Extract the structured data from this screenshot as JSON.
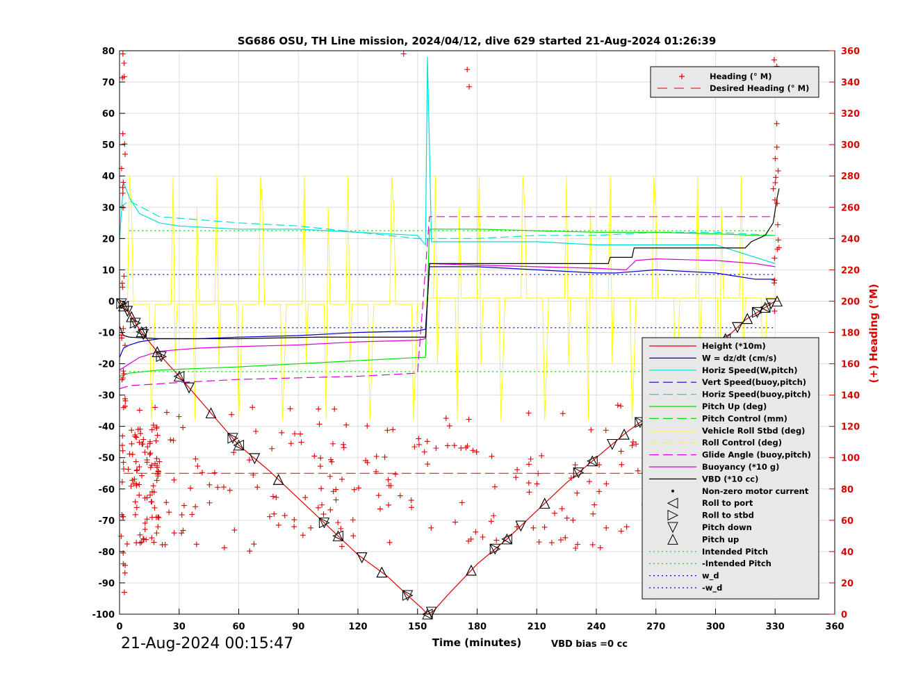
{
  "chart_data": {
    "type": "line",
    "title": "SG686 OSU, TH Line mission, 2024/04/12, dive 629 started 21-Aug-2024 01:26:39",
    "xlabel": "Time (minutes)",
    "ylabel_right": "(+) Heading (°M)",
    "footer_left": "21-Aug-2024 00:15:47",
    "footer_note": "VBD bias =0 cc",
    "xlim": [
      0,
      360
    ],
    "ylim": [
      -100,
      80
    ],
    "ylim_right": [
      0,
      360
    ],
    "x_ticks": [
      "0",
      "30",
      "60",
      "90",
      "120",
      "150",
      "180",
      "210",
      "240",
      "270",
      "300",
      "330",
      "360"
    ],
    "y_ticks": [
      "80",
      "70",
      "60",
      "50",
      "40",
      "30",
      "20",
      "10",
      "0",
      "-10",
      "-20",
      "-30",
      "-40",
      "-50",
      "-60",
      "-70",
      "-80",
      "-90",
      "-100"
    ],
    "y_ticks_right": [
      "360",
      "340",
      "320",
      "300",
      "280",
      "260",
      "240",
      "220",
      "200",
      "180",
      "160",
      "140",
      "120",
      "100",
      "80",
      "60",
      "40",
      "20",
      "0"
    ],
    "grid": true,
    "legend_top": [
      {
        "label": "Heading (° M)",
        "color": "#dd0000",
        "style": "plus"
      },
      {
        "label": "Desired Heading (° M)",
        "color": "#dd0000",
        "style": "dash"
      }
    ],
    "legend_main": [
      {
        "label": "Height (*10m)",
        "color": "#dd0000",
        "style": "solid"
      },
      {
        "label": "W = dz/dt (cm/s)",
        "color": "#0000cc",
        "style": "solid"
      },
      {
        "label": "Horiz Speed(W,pitch)",
        "color": "#00dddd",
        "style": "solid"
      },
      {
        "label": "Vert Speed(buoy,pitch)",
        "color": "#0000cc",
        "style": "dash"
      },
      {
        "label": "Horiz Speed(buoy,pitch)",
        "color": "#00dddd",
        "style": "dash"
      },
      {
        "label": "Pitch Up (deg)",
        "color": "#00dd00",
        "style": "solid"
      },
      {
        "label": "Pitch Control (mm)",
        "color": "#00dd00",
        "style": "dash"
      },
      {
        "label": "Vehicle Roll Stbd (deg)",
        "color": "#ffff00",
        "style": "solid"
      },
      {
        "label": "Roll Control (deg)",
        "color": "#ffff00",
        "style": "dash"
      },
      {
        "label": "Glide Angle (buoy,pitch)",
        "color": "#dd00dd",
        "style": "dash"
      },
      {
        "label": "Buoyancy (*10 g)",
        "color": "#dd00dd",
        "style": "solid"
      },
      {
        "label": "VBD (*10 cc)",
        "color": "#000000",
        "style": "solid"
      },
      {
        "label": "Non-zero motor current",
        "color": "#000000",
        "style": "dot"
      },
      {
        "label": "Roll to port",
        "color": "#000000",
        "style": "tri-left"
      },
      {
        "label": "Roll to stbd",
        "color": "#000000",
        "style": "tri-right"
      },
      {
        "label": "Pitch down",
        "color": "#000000",
        "style": "tri-down"
      },
      {
        "label": "Pitch up",
        "color": "#000000",
        "style": "tri-up"
      },
      {
        "label": "Intended Pitch",
        "color": "#00dd00",
        "style": "dotted"
      },
      {
        "label": "-Intended Pitch",
        "color": "#00dd00",
        "style": "dotted"
      },
      {
        "label": "w_d",
        "color": "#0000cc",
        "style": "dotted"
      },
      {
        "label": "-w_d",
        "color": "#0000cc",
        "style": "dotted"
      }
    ],
    "series": [
      {
        "name": "Height (*10m)",
        "color": "#dd0000",
        "x": [
          0,
          5,
          10,
          20,
          30,
          45,
          60,
          75,
          90,
          105,
          120,
          135,
          145,
          152,
          155,
          158,
          165,
          180,
          195,
          210,
          225,
          240,
          255,
          270,
          285,
          300,
          315,
          325,
          330,
          332
        ],
        "y": [
          0,
          -4,
          -9,
          -17,
          -24,
          -35,
          -46,
          -54,
          -63,
          -72,
          -81,
          -88,
          -94,
          -98,
          -100,
          -99,
          -94,
          -84,
          -76,
          -67,
          -58,
          -50,
          -42,
          -35,
          -25,
          -15,
          -6,
          -2,
          0,
          0
        ]
      },
      {
        "name": "W = dz/dt (cm/s)",
        "color": "#0000cc",
        "x": [
          0,
          2,
          5,
          10,
          20,
          40,
          60,
          90,
          120,
          150,
          154,
          156,
          180,
          210,
          240,
          250,
          270,
          300,
          310,
          320,
          330
        ],
        "y": [
          -18,
          -15,
          -14,
          -13,
          -12,
          -12,
          -11.5,
          -11,
          -10,
          -9.5,
          -9,
          11,
          11,
          10,
          9,
          9,
          10,
          9,
          8,
          7,
          7
        ]
      },
      {
        "name": "Horiz Speed(W,pitch)",
        "color": "#00dddd",
        "x": [
          0,
          2,
          5,
          10,
          20,
          30,
          60,
          90,
          120,
          150,
          154,
          155,
          157,
          180,
          210,
          240,
          270,
          300,
          320,
          330
        ],
        "y": [
          20,
          38,
          33,
          28,
          25,
          24,
          23,
          23,
          22,
          21,
          18,
          78,
          19,
          19,
          19,
          18,
          18,
          18,
          14,
          12
        ]
      },
      {
        "name": "Horiz Speed(buoy,pitch)",
        "color": "#00dddd",
        "x": [
          0,
          5,
          20,
          40,
          60,
          90,
          120,
          150,
          156,
          180,
          210,
          240,
          270,
          300,
          330
        ],
        "y": [
          30,
          32,
          27,
          26,
          25,
          24,
          22,
          20,
          20,
          20,
          21,
          21,
          22,
          22,
          21
        ]
      },
      {
        "name": "Pitch Up (deg)",
        "color": "#00dd00",
        "x": [
          0,
          5,
          20,
          40,
          60,
          90,
          120,
          150,
          154,
          156,
          180,
          210,
          240,
          270,
          300,
          320,
          330
        ],
        "y": [
          -24,
          -23,
          -22,
          -21.5,
          -21,
          -20,
          -19,
          -18,
          -18,
          23,
          23,
          22.5,
          22,
          22,
          21.5,
          21,
          21
        ]
      },
      {
        "name": "Glide Angle (buoy,pitch)",
        "color": "#dd00dd",
        "x": [
          0,
          5,
          30,
          60,
          90,
          120,
          150,
          156,
          180,
          210,
          240,
          270,
          300,
          330
        ],
        "y": [
          -28,
          -27,
          -26,
          -25,
          -24.5,
          -24,
          -23,
          27,
          27,
          27,
          27,
          27,
          27,
          27
        ]
      },
      {
        "name": "Buoyancy (*10 g)",
        "color": "#dd00dd",
        "x": [
          0,
          5,
          10,
          20,
          40,
          60,
          90,
          120,
          150,
          154,
          156,
          180,
          210,
          240,
          255,
          260,
          270,
          300,
          320,
          330
        ],
        "y": [
          -22,
          -20,
          -18,
          -16,
          -15,
          -14.5,
          -14,
          -13,
          -12.5,
          -12,
          12,
          11.5,
          11,
          10.5,
          10,
          13,
          13.5,
          13,
          12,
          11
        ]
      },
      {
        "name": "VBD (*10 cc)",
        "color": "#000000",
        "x": [
          0,
          2,
          5,
          20,
          60,
          100,
          150,
          154,
          156,
          200,
          246,
          247,
          258,
          259,
          280,
          315,
          318,
          325,
          329,
          331,
          332
        ],
        "y": [
          -8,
          -11,
          -11.5,
          -12,
          -12,
          -11.5,
          -11.5,
          -11.5,
          12,
          12,
          12,
          14,
          14,
          17,
          17,
          17,
          19,
          21,
          25,
          33,
          36
        ]
      }
    ],
    "roll_control_levels": {
      "x": [
        0,
        154,
        156,
        330
      ],
      "y": [
        0,
        0,
        1,
        1
      ]
    },
    "intended_pitch": 22.5,
    "w_d": 8.5,
    "desired_heading": 90
  }
}
